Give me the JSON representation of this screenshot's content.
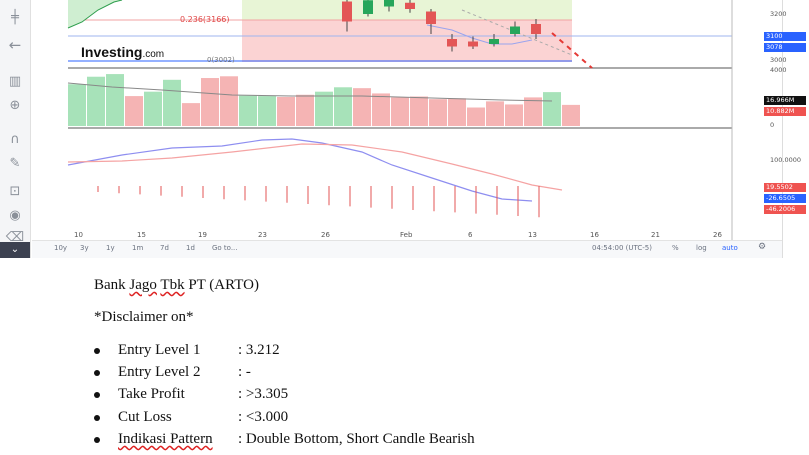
{
  "toolbar": {
    "icons": [
      "crosshair-icon",
      "arrow-left-icon",
      "indicators-icon",
      "zoom-icon",
      "magnet-icon",
      "brush-icon",
      "lock-icon",
      "eye-icon",
      "trash-icon"
    ]
  },
  "chart": {
    "fib_label": "0.236(3166)",
    "fib_label2": "0(3002)",
    "logo": "Investing",
    "logo_suffix": ".com",
    "y_labels": [
      "3200",
      "3000",
      "4000",
      "0",
      "100.0000"
    ],
    "price_tags": [
      {
        "text": "3100",
        "color": "#2962ff"
      },
      {
        "text": "3078",
        "color": "#2962ff"
      },
      {
        "text": "16.966M",
        "color": "#111111"
      },
      {
        "text": "10.882M",
        "color": "#ef5350"
      },
      {
        "text": "19.5502",
        "color": "#ef5350"
      },
      {
        "text": "-26.6505",
        "color": "#2962ff"
      },
      {
        "text": "-46.2006",
        "color": "#ef5350"
      }
    ],
    "x_labels": [
      "10",
      "15",
      "19",
      "23",
      "26",
      "Feb",
      "6",
      "13",
      "16",
      "21",
      "26"
    ]
  },
  "chart_data": {
    "type": "candlestick",
    "candles": [
      {
        "open": 3240,
        "close": 3160,
        "high": 3260,
        "low": 3120
      },
      {
        "open": 3190,
        "close": 3245,
        "high": 3255,
        "low": 3180
      },
      {
        "open": 3220,
        "close": 3250,
        "high": 3265,
        "low": 3200
      },
      {
        "open": 3235,
        "close": 3210,
        "high": 3250,
        "low": 3195
      },
      {
        "open": 3200,
        "close": 3150,
        "high": 3210,
        "low": 3110
      },
      {
        "open": 3090,
        "close": 3060,
        "high": 3110,
        "low": 3040
      },
      {
        "open": 3080,
        "close": 3060,
        "high": 3100,
        "low": 3050
      },
      {
        "open": 3070,
        "close": 3090,
        "high": 3110,
        "low": 3060
      },
      {
        "open": 3110,
        "close": 3140,
        "high": 3160,
        "low": 3100
      },
      {
        "open": 3150,
        "close": 3110,
        "high": 3170,
        "low": 3090
      }
    ],
    "volumes": [
      9.5,
      11.2,
      11.8,
      6.8,
      7.8,
      10.5,
      5.2,
      10.9,
      11.3,
      6.9,
      6.8,
      6.6,
      7.1,
      7.8,
      8.8,
      8.6,
      7.4,
      6.5,
      6.7,
      6.1,
      6.3,
      4.2,
      5.6,
      4.9,
      6.5,
      7.7,
      4.8
    ],
    "volume_colors": [
      "g",
      "g",
      "g",
      "r",
      "g",
      "g",
      "r",
      "r",
      "r",
      "g",
      "g",
      "r",
      "r",
      "g",
      "g",
      "r",
      "r",
      "r",
      "r",
      "r",
      "r",
      "r",
      "r",
      "r",
      "r",
      "g",
      "r"
    ]
  },
  "bottombar": {
    "ranges": [
      "10y",
      "3y",
      "1y",
      "1m",
      "7d",
      "1d",
      "Go to..."
    ],
    "time": "04:54:00 (UTC-5)",
    "pct": "%",
    "log": "log",
    "auto": "auto"
  },
  "doc": {
    "title": "Bank ",
    "title_sq1": "Jago",
    "title_sp": " ",
    "title_sq2": "Tbk",
    "title_rest": " PT (ARTO)",
    "disclaimer": "*Disclaimer on*",
    "items": [
      {
        "label": "Entry Level 1",
        "value": ": 3.212"
      },
      {
        "label": "Entry Level 2",
        "value": ": -"
      },
      {
        "label": "Take Profit",
        "value": ": >3.305"
      },
      {
        "label": "Cut Loss",
        "value": ": <3.000"
      },
      {
        "label": "Indikasi Pattern",
        "value": ": Double Bottom, Short Candle Bearish"
      }
    ]
  }
}
